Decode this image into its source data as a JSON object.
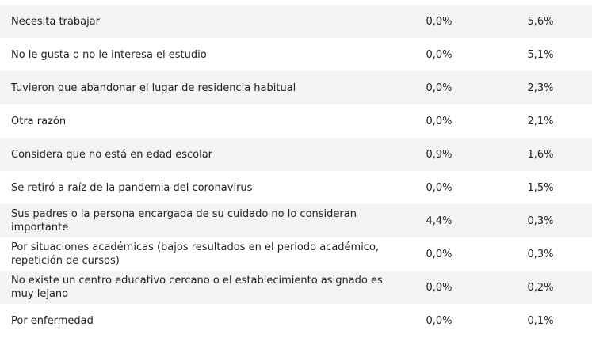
{
  "table": {
    "rows": [
      {
        "label": "Necesita trabajar",
        "v1": "0,0%",
        "v2": "5,6%"
      },
      {
        "label": "No le gusta o no le interesa el estudio",
        "v1": "0,0%",
        "v2": "5,1%"
      },
      {
        "label": "Tuvieron que abandonar el lugar de residencia habitual",
        "v1": "0,0%",
        "v2": "2,3%"
      },
      {
        "label": "Otra razón",
        "v1": "0,0%",
        "v2": "2,1%"
      },
      {
        "label": "Considera que no está en edad escolar",
        "v1": "0,9%",
        "v2": "1,6%"
      },
      {
        "label": "Se retiró a raíz de la pandemia del coronavirus",
        "v1": "0,0%",
        "v2": "1,5%"
      },
      {
        "label": "Sus padres o la persona encargada de su cuidado no lo consideran importante",
        "v1": "4,4%",
        "v2": "0,3%"
      },
      {
        "label": "Por situaciones académicas (bajos resultados en el periodo académico, repetición de cursos)",
        "v1": "0,0%",
        "v2": "0,3%"
      },
      {
        "label": "No existe un centro educativo cercano o el establecimiento asignado es muy lejano",
        "v1": "0,0%",
        "v2": "0,2%"
      },
      {
        "label": "Por enfermedad",
        "v1": "0,0%",
        "v2": "0,1%"
      }
    ]
  }
}
